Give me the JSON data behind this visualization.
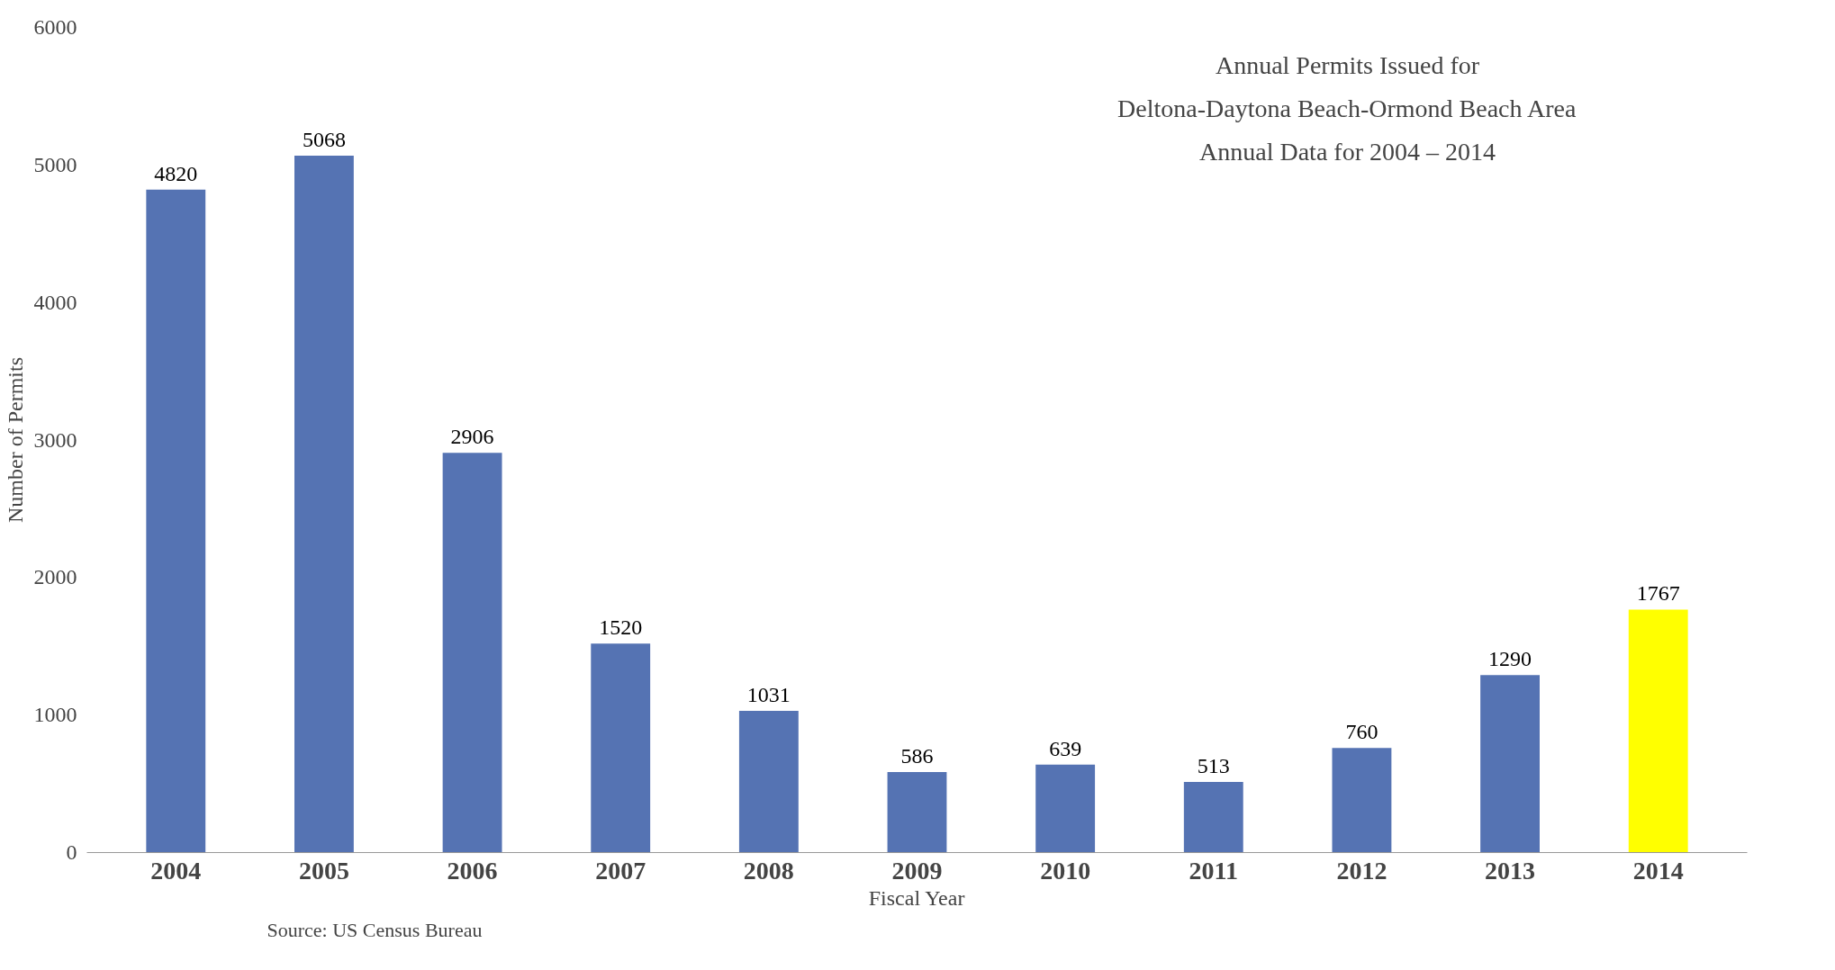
{
  "chart_data": {
    "type": "bar",
    "title": "Annual Permits Issued for\nDeltona-Daytona Beach-Ormond Beach Area\nAnnual Data for 2004 – 2014",
    "xlabel": "Fiscal Year",
    "ylabel": "Number of Permits",
    "annotations": [
      "Source:  US Census Bureau"
    ],
    "categories": [
      "2004",
      "2005",
      "2006",
      "2007",
      "2008",
      "2009",
      "2010",
      "2011",
      "2012",
      "2013",
      "2014"
    ],
    "values": [
      4820,
      5068,
      2906,
      1520,
      1031,
      586,
      639,
      513,
      760,
      1290,
      1767
    ],
    "colors": [
      "#5573b3",
      "#5573b3",
      "#5573b3",
      "#5573b3",
      "#5573b3",
      "#5573b3",
      "#5573b3",
      "#5573b3",
      "#5573b3",
      "#5573b3",
      "#ffff00"
    ],
    "ylim": [
      0,
      6000
    ],
    "yticks": [
      0,
      1000,
      2000,
      3000,
      4000,
      5000,
      6000
    ],
    "data_labels": true,
    "grid": false
  }
}
